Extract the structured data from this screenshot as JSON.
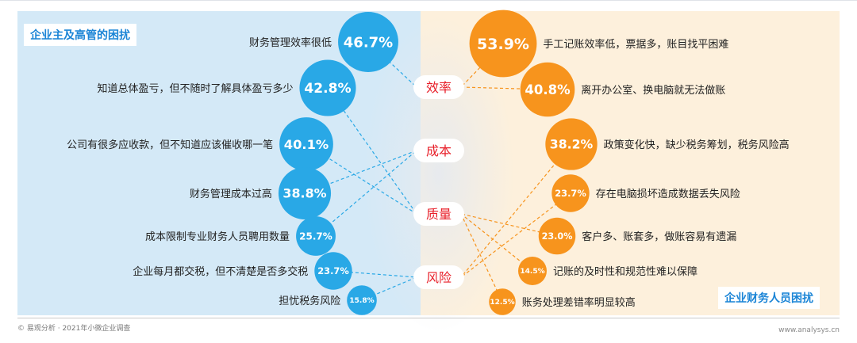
{
  "legend": {
    "left": "企业主及高管的困扰",
    "right": "企业财务人员困扰"
  },
  "footer": {
    "source": "© 易观分析 · 2021年小微企业调查",
    "site": "www.analysys.cn"
  },
  "colors": {
    "blue": "#29a8e6",
    "orange": "#f7941d",
    "center_text": "#e8202a"
  },
  "chart_data": {
    "type": "bubble-matrix",
    "categories": [
      "效率",
      "成本",
      "质量",
      "风险"
    ],
    "left_series": {
      "name": "企业主及高管的困扰",
      "items": [
        {
          "label": "财务管理效率很低",
          "value": 46.7,
          "value_label": "46.7%",
          "category": "效率"
        },
        {
          "label": "知道总体盈亏，但不随时了解具体盈亏多少",
          "value": 42.8,
          "value_label": "42.8%",
          "category": "质量"
        },
        {
          "label": "公司有很多应收款，但不知道应该催收哪一笔",
          "value": 40.1,
          "value_label": "40.1%",
          "category": "质量"
        },
        {
          "label": "财务管理成本过高",
          "value": 38.8,
          "value_label": "38.8%",
          "category": "成本"
        },
        {
          "label": "成本限制专业财务人员聘用数量",
          "value": 25.7,
          "value_label": "25.7%",
          "category": "成本"
        },
        {
          "label": "企业每月都交税，但不清楚是否多交税",
          "value": 23.7,
          "value_label": "23.7%",
          "category": "风险"
        },
        {
          "label": "担忧税务风险",
          "value": 15.8,
          "value_label": "15.8%",
          "category": "风险"
        }
      ]
    },
    "right_series": {
      "name": "企业财务人员困扰",
      "items": [
        {
          "label": "手工记账效率低，票据多，账目找平困难",
          "value": 53.9,
          "value_label": "53.9%",
          "category": "效率"
        },
        {
          "label": "离开办公室、换电脑就无法做账",
          "value": 40.8,
          "value_label": "40.8%",
          "category": "效率"
        },
        {
          "label": "政策变化快，缺少税务筹划，税务风险高",
          "value": 38.2,
          "value_label": "38.2%",
          "category": "风险"
        },
        {
          "label": "存在电脑损坏造成数据丢失风险",
          "value": 23.7,
          "value_label": "23.7%",
          "category": "风险"
        },
        {
          "label": "客户多、账套多，做账容易有遗漏",
          "value": 23.0,
          "value_label": "23.0%",
          "category": "质量"
        },
        {
          "label": "记账的及时性和规范性难以保障",
          "value": 14.5,
          "value_label": "14.5%",
          "category": "质量"
        },
        {
          "label": "账务处理差错率明显较高",
          "value": 12.5,
          "value_label": "12.5%",
          "category": "质量"
        }
      ]
    }
  }
}
